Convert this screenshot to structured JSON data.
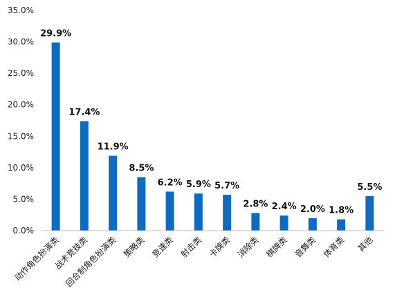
{
  "chart_data": {
    "type": "bar",
    "categories": [
      "动作角色扮演类",
      "战术竞技类",
      "回合制角色扮演类",
      "策略类",
      "竞速类",
      "射击类",
      "卡牌类",
      "消除类",
      "棋牌类",
      "音舞类",
      "体育类",
      "其他"
    ],
    "values": [
      29.9,
      17.4,
      11.9,
      8.5,
      6.2,
      5.9,
      5.7,
      2.8,
      2.4,
      2.0,
      1.8,
      5.5
    ],
    "data_labels": [
      "29.9%",
      "17.4%",
      "11.9%",
      "8.5%",
      "6.2%",
      "5.9%",
      "5.7%",
      "2.8%",
      "2.4%",
      "2.0%",
      "1.8%",
      "5.5%"
    ],
    "y_ticks": [
      "0.0%",
      "5.0%",
      "10.0%",
      "15.0%",
      "20.0%",
      "25.0%",
      "30.0%",
      "35.0%"
    ],
    "ylim": [
      0,
      35
    ],
    "bar_color": "#0e6bbf",
    "grid": false,
    "legend": "none"
  }
}
